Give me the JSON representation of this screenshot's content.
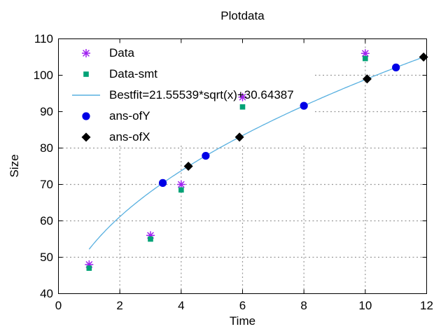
{
  "chart_data": {
    "type": "scatter",
    "title": "Plotdata",
    "xlabel": "Time",
    "ylabel": "Size",
    "xlim": [
      0,
      12
    ],
    "ylim": [
      40,
      110
    ],
    "xticks": [
      0,
      2,
      4,
      6,
      8,
      10,
      12
    ],
    "yticks": [
      40,
      50,
      60,
      70,
      80,
      90,
      100,
      110
    ],
    "grid": {
      "show": true,
      "style": "dotted",
      "color": "#999999",
      "vertical_at_x": [
        2,
        4,
        6,
        8,
        10
      ],
      "horizontal_at_y": [
        50,
        60,
        70,
        80,
        90,
        100
      ]
    },
    "legend": {
      "position": "top-left",
      "opaque_over_grid": true
    },
    "axis_color": "#000000",
    "background": "#ffffff",
    "series": [
      {
        "name": "Data",
        "marker": "asterisk",
        "color": "#a020f0",
        "points": [
          [
            1,
            48
          ],
          [
            3,
            56
          ],
          [
            4,
            70
          ],
          [
            6,
            94
          ],
          [
            10,
            106
          ]
        ]
      },
      {
        "name": "Data-smt",
        "marker": "square",
        "color": "#00a276",
        "points": [
          [
            1,
            47
          ],
          [
            3,
            55
          ],
          [
            4,
            68.5
          ],
          [
            6,
            91.3
          ],
          [
            10,
            104.6
          ]
        ]
      },
      {
        "name": "Bestfit=21.55539*sqrt(x)+30.64387",
        "marker": "line",
        "color": "#58b0e0",
        "curve": {
          "formula": "y = 21.55539*sqrt(x) + 30.64387",
          "a": 21.55539,
          "b": 30.64387,
          "x_start": 1,
          "x_end": 12
        }
      },
      {
        "name": "ans-ofY",
        "marker": "circle",
        "color": "#0000e6",
        "points": [
          [
            3.4,
            70.41
          ],
          [
            4.8,
            77.87
          ],
          [
            8,
            91.61
          ],
          [
            11,
            102.14
          ]
        ]
      },
      {
        "name": "ans-ofX",
        "marker": "diamond",
        "color": "#000000",
        "points": [
          [
            4.235,
            75
          ],
          [
            5.9,
            83
          ],
          [
            10.06,
            99
          ],
          [
            11.9,
            105
          ]
        ]
      }
    ]
  }
}
